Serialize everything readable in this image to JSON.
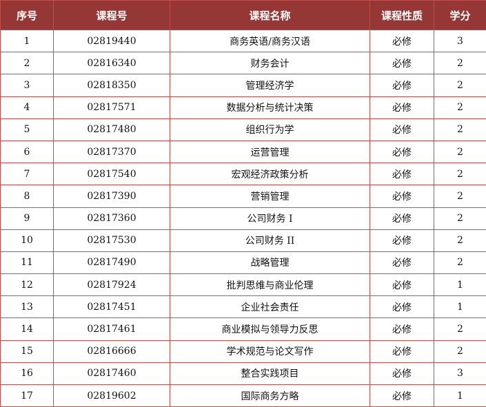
{
  "headers": [
    "序号",
    "课程号",
    "课程名称",
    "课程性质",
    "学分"
  ],
  "rows": [
    [
      "1",
      "02819440",
      "商务英语/商务汉语",
      "必修",
      "3"
    ],
    [
      "2",
      "02816340",
      "财务会计",
      "必修",
      "2"
    ],
    [
      "3",
      "02818350",
      "管理经济学",
      "必修",
      "2"
    ],
    [
      "4",
      "02817571",
      "数据分析与统计决策",
      "必修",
      "2"
    ],
    [
      "5",
      "02817480",
      "组织行为学",
      "必修",
      "2"
    ],
    [
      "6",
      "02817370",
      "运营管理",
      "必修",
      "2"
    ],
    [
      "7",
      "02817540",
      "宏观经济政策分析",
      "必修",
      "2"
    ],
    [
      "8",
      "02817390",
      "营销管理",
      "必修",
      "2"
    ],
    [
      "9",
      "02817360",
      "公司财务 I",
      "必修",
      "2"
    ],
    [
      "10",
      "02817530",
      "公司财务 II",
      "必修",
      "2"
    ],
    [
      "11",
      "02817490",
      "战略管理",
      "必修",
      "2"
    ],
    [
      "12",
      "02817924",
      "批判思维与商业伦理",
      "必修",
      "1"
    ],
    [
      "13",
      "02817451",
      "企业社会责任",
      "必修",
      "1"
    ],
    [
      "14",
      "02817461",
      "商业模拟与领导力反思",
      "必修",
      "2"
    ],
    [
      "15",
      "02816666",
      "学术规范与论文写作",
      "必修",
      "2"
    ],
    [
      "16",
      "02817460",
      "整合实践项目",
      "必修",
      "3"
    ],
    [
      "17",
      "02819602",
      "国际商务方略",
      "必修",
      "1"
    ]
  ]
}
